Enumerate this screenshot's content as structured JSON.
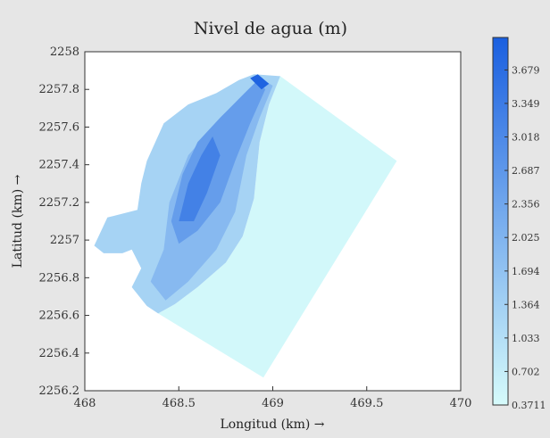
{
  "chart_data": {
    "type": "heatmap",
    "title": "Nivel de agua (m)",
    "xlabel": "Longitud (km) →",
    "ylabel": "Latitud  (km) →",
    "xlim": [
      468,
      470
    ],
    "ylim": [
      2256.2,
      2258
    ],
    "x_ticks": [
      468,
      468.5,
      469,
      469.5,
      470
    ],
    "x_tick_labels": [
      "468",
      "468.5",
      "469",
      "469.5",
      "470"
    ],
    "y_ticks": [
      2256.2,
      2256.4,
      2256.6,
      2256.8,
      2257,
      2257.2,
      2257.4,
      2257.6,
      2257.8,
      2258
    ],
    "y_tick_labels": [
      "2256.2",
      "2256.4",
      "2256.6",
      "2256.8",
      "2257",
      "2257.2",
      "2257.4",
      "2257.6",
      "2257.8",
      "2258"
    ],
    "colorbar": {
      "min": 0.3711,
      "max": 4.0,
      "ticks": [
        "0.3711",
        "0.702",
        "1.033",
        "1.364",
        "1.694",
        "2.025",
        "2.356",
        "2.687",
        "3.018",
        "3.349",
        "3.679"
      ],
      "color_low": "#d6fbfb",
      "color_high": "#1a5fe0"
    },
    "grid": false,
    "regions": [
      {
        "level": 0.45,
        "polygon": [
          [
            468.39,
            2256.61
          ],
          [
            468.95,
            2256.27
          ],
          [
            469.66,
            2257.42
          ],
          [
            469.04,
            2257.87
          ],
          [
            468.98,
            2257.72
          ],
          [
            468.93,
            2257.52
          ],
          [
            468.9,
            2257.22
          ],
          [
            468.84,
            2257.02
          ],
          [
            468.75,
            2256.88
          ],
          [
            468.6,
            2256.75
          ],
          [
            468.48,
            2256.66
          ]
        ]
      },
      {
        "level": 1.3,
        "polygon": [
          [
            468.1,
            2256.93
          ],
          [
            468.05,
            2256.97
          ],
          [
            468.12,
            2257.12
          ],
          [
            468.28,
            2257.16
          ],
          [
            468.3,
            2257.3
          ],
          [
            468.33,
            2257.42
          ],
          [
            468.42,
            2257.62
          ],
          [
            468.55,
            2257.72
          ],
          [
            468.7,
            2257.78
          ],
          [
            468.82,
            2257.85
          ],
          [
            468.9,
            2257.88
          ],
          [
            469.04,
            2257.87
          ],
          [
            468.98,
            2257.72
          ],
          [
            468.93,
            2257.52
          ],
          [
            468.9,
            2257.22
          ],
          [
            468.84,
            2257.02
          ],
          [
            468.75,
            2256.88
          ],
          [
            468.6,
            2256.75
          ],
          [
            468.48,
            2256.66
          ],
          [
            468.39,
            2256.61
          ],
          [
            468.33,
            2256.65
          ],
          [
            468.25,
            2256.75
          ],
          [
            468.3,
            2256.85
          ],
          [
            468.25,
            2256.95
          ],
          [
            468.2,
            2256.93
          ]
        ]
      },
      {
        "level": 1.9,
        "polygon": [
          [
            468.35,
            2256.78
          ],
          [
            468.42,
            2256.95
          ],
          [
            468.45,
            2257.2
          ],
          [
            468.55,
            2257.45
          ],
          [
            468.7,
            2257.62
          ],
          [
            468.85,
            2257.75
          ],
          [
            468.95,
            2257.85
          ],
          [
            469.0,
            2257.82
          ],
          [
            468.93,
            2257.65
          ],
          [
            468.86,
            2257.45
          ],
          [
            468.8,
            2257.15
          ],
          [
            468.7,
            2256.95
          ],
          [
            468.55,
            2256.78
          ],
          [
            468.43,
            2256.68
          ]
        ]
      },
      {
        "level": 2.55,
        "polygon": [
          [
            468.46,
            2257.1
          ],
          [
            468.52,
            2257.35
          ],
          [
            468.6,
            2257.52
          ],
          [
            468.72,
            2257.65
          ],
          [
            468.85,
            2257.78
          ],
          [
            468.92,
            2257.85
          ],
          [
            468.96,
            2257.8
          ],
          [
            468.88,
            2257.62
          ],
          [
            468.8,
            2257.42
          ],
          [
            468.72,
            2257.2
          ],
          [
            468.6,
            2257.05
          ],
          [
            468.5,
            2256.98
          ]
        ]
      },
      {
        "level": 3.2,
        "polygon": [
          [
            468.5,
            2257.1
          ],
          [
            468.55,
            2257.3
          ],
          [
            468.62,
            2257.45
          ],
          [
            468.68,
            2257.55
          ],
          [
            468.72,
            2257.45
          ],
          [
            468.65,
            2257.25
          ],
          [
            468.58,
            2257.1
          ]
        ]
      },
      {
        "level": 3.9,
        "polygon": [
          [
            468.88,
            2257.86
          ],
          [
            468.92,
            2257.88
          ],
          [
            468.98,
            2257.83
          ],
          [
            468.94,
            2257.8
          ]
        ]
      }
    ]
  }
}
